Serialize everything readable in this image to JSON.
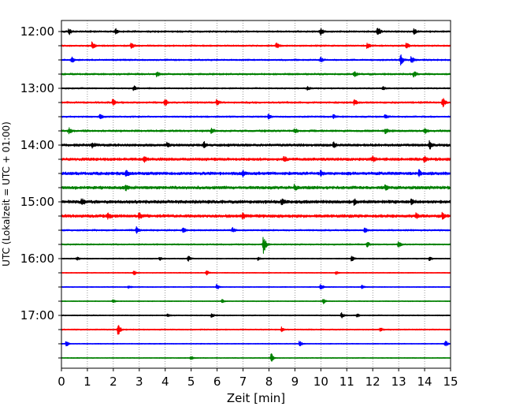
{
  "chart_data": {
    "type": "line",
    "title": "",
    "xlabel": "Zeit  [min]",
    "ylabel": "UTC (Lokalzeit = UTC + 01:00)",
    "xlim": [
      0,
      15
    ],
    "xticks": [
      "0",
      "1",
      "2",
      "3",
      "4",
      "5",
      "6",
      "7",
      "8",
      "9",
      "10",
      "11",
      "12",
      "13",
      "14",
      "15"
    ],
    "ytick_labels": [
      "12:00",
      "13:00",
      "14:00",
      "15:00",
      "16:00",
      "17:00"
    ],
    "grid": "vertical dotted at each minute",
    "trace_interval_minutes": 15,
    "color_cycle": [
      "#000000",
      "#ff0000",
      "#0000ff",
      "#008000"
    ],
    "traces": [
      {
        "start": "12:00",
        "color": "#000000",
        "noise": 0.9,
        "events": [
          [
            0.3,
            3
          ],
          [
            2.1,
            3
          ],
          [
            10.0,
            4
          ],
          [
            12.2,
            5
          ],
          [
            13.6,
            3
          ]
        ]
      },
      {
        "start": "12:15",
        "color": "#ff0000",
        "noise": 0.8,
        "events": [
          [
            1.2,
            4
          ],
          [
            2.7,
            3
          ],
          [
            8.3,
            3
          ],
          [
            11.8,
            3
          ],
          [
            13.3,
            3
          ]
        ]
      },
      {
        "start": "12:30",
        "color": "#0000ff",
        "noise": 0.8,
        "events": [
          [
            0.4,
            3
          ],
          [
            10.0,
            3
          ],
          [
            13.1,
            6
          ],
          [
            13.5,
            4
          ]
        ]
      },
      {
        "start": "12:45",
        "color": "#008000",
        "noise": 0.9,
        "events": [
          [
            3.7,
            3
          ],
          [
            11.3,
            3
          ],
          [
            13.6,
            3
          ]
        ]
      },
      {
        "start": "13:00",
        "color": "#000000",
        "noise": 0.7,
        "events": [
          [
            2.8,
            3
          ],
          [
            9.5,
            2
          ],
          [
            12.4,
            2
          ]
        ]
      },
      {
        "start": "13:15",
        "color": "#ff0000",
        "noise": 0.9,
        "events": [
          [
            2.0,
            3
          ],
          [
            4.0,
            4
          ],
          [
            6.0,
            3
          ],
          [
            11.3,
            3
          ],
          [
            14.7,
            6
          ]
        ]
      },
      {
        "start": "13:30",
        "color": "#0000ff",
        "noise": 0.8,
        "events": [
          [
            1.5,
            3
          ],
          [
            8.0,
            3
          ],
          [
            10.5,
            2
          ],
          [
            12.5,
            2
          ]
        ]
      },
      {
        "start": "13:45",
        "color": "#008000",
        "noise": 1.0,
        "events": [
          [
            0.3,
            3
          ],
          [
            5.8,
            3
          ],
          [
            9.0,
            3
          ],
          [
            12.5,
            3
          ],
          [
            14.0,
            3
          ]
        ]
      },
      {
        "start": "14:00",
        "color": "#000000",
        "noise": 1.3,
        "events": [
          [
            1.2,
            3
          ],
          [
            4.1,
            3
          ],
          [
            5.5,
            3
          ],
          [
            10.5,
            3
          ],
          [
            14.2,
            4
          ]
        ]
      },
      {
        "start": "14:15",
        "color": "#ff0000",
        "noise": 1.4,
        "events": [
          [
            3.2,
            3
          ],
          [
            8.6,
            3
          ],
          [
            12.0,
            3
          ],
          [
            14.0,
            3
          ]
        ]
      },
      {
        "start": "14:30",
        "color": "#0000ff",
        "noise": 1.5,
        "events": [
          [
            2.5,
            3
          ],
          [
            7.0,
            3
          ],
          [
            10.0,
            3
          ],
          [
            13.8,
            3
          ]
        ]
      },
      {
        "start": "14:45",
        "color": "#008000",
        "noise": 1.5,
        "events": [
          [
            2.5,
            3
          ],
          [
            9.0,
            3
          ],
          [
            12.5,
            3
          ]
        ]
      },
      {
        "start": "15:00",
        "color": "#000000",
        "noise": 1.6,
        "events": [
          [
            0.8,
            3
          ],
          [
            8.5,
            3
          ],
          [
            11.3,
            3
          ],
          [
            13.5,
            3
          ]
        ]
      },
      {
        "start": "15:15",
        "color": "#ff0000",
        "noise": 1.5,
        "events": [
          [
            1.8,
            3
          ],
          [
            3.0,
            3
          ],
          [
            7.0,
            3
          ],
          [
            13.7,
            3
          ],
          [
            14.7,
            3
          ]
        ]
      },
      {
        "start": "15:30",
        "color": "#0000ff",
        "noise": 0.8,
        "events": [
          [
            2.9,
            4
          ],
          [
            4.7,
            3
          ],
          [
            6.6,
            3
          ],
          [
            11.7,
            3
          ]
        ]
      },
      {
        "start": "15:45",
        "color": "#008000",
        "noise": 0.7,
        "events": [
          [
            7.8,
            11
          ],
          [
            11.8,
            3
          ],
          [
            13.0,
            3
          ]
        ]
      },
      {
        "start": "16:00",
        "color": "#000000",
        "noise": 0.5,
        "events": [
          [
            0.6,
            2
          ],
          [
            3.8,
            2
          ],
          [
            4.9,
            3
          ],
          [
            7.6,
            2
          ],
          [
            11.2,
            3
          ],
          [
            14.2,
            2
          ]
        ]
      },
      {
        "start": "16:15",
        "color": "#ff0000",
        "noise": 0.4,
        "events": [
          [
            2.8,
            3
          ],
          [
            5.6,
            3
          ],
          [
            10.6,
            2
          ]
        ]
      },
      {
        "start": "16:30",
        "color": "#0000ff",
        "noise": 0.4,
        "events": [
          [
            2.6,
            2
          ],
          [
            6.0,
            3
          ],
          [
            10.0,
            4
          ],
          [
            11.6,
            2
          ]
        ]
      },
      {
        "start": "16:45",
        "color": "#008000",
        "noise": 0.4,
        "events": [
          [
            2.0,
            2
          ],
          [
            6.2,
            2
          ],
          [
            10.1,
            3
          ]
        ]
      },
      {
        "start": "17:00",
        "color": "#000000",
        "noise": 0.5,
        "events": [
          [
            4.1,
            2
          ],
          [
            5.8,
            2
          ],
          [
            10.8,
            3
          ],
          [
            11.4,
            2
          ]
        ]
      },
      {
        "start": "17:15",
        "color": "#ff0000",
        "noise": 0.6,
        "events": [
          [
            2.2,
            6
          ],
          [
            8.5,
            3
          ],
          [
            12.3,
            2
          ]
        ]
      },
      {
        "start": "17:30",
        "color": "#0000ff",
        "noise": 0.4,
        "events": [
          [
            0.2,
            3
          ],
          [
            9.2,
            3
          ],
          [
            14.8,
            4
          ]
        ]
      },
      {
        "start": "17:45",
        "color": "#008000",
        "noise": 0.4,
        "events": [
          [
            8.1,
            5
          ],
          [
            5.0,
            2
          ]
        ]
      }
    ]
  }
}
